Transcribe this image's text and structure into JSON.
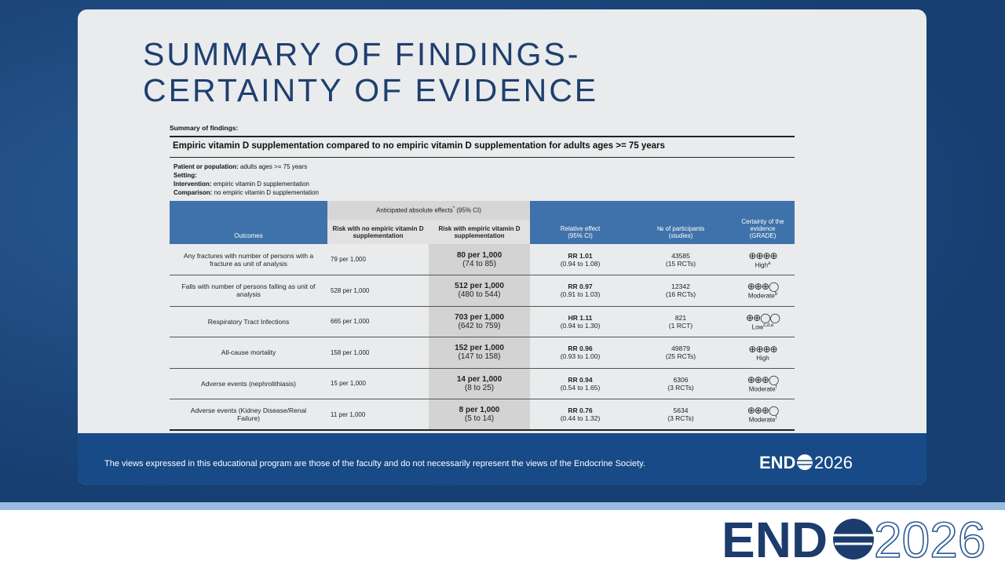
{
  "slide": {
    "title_lines": [
      "SUMMARY OF FINDINGS-",
      "CERTAINTY OF EVIDENCE"
    ],
    "footer": "The views expressed in this educational program are those of the faculty and do not necessarily represent the views of the Endocrine Society.",
    "footer_logo": {
      "bold": "END",
      "year": "2026"
    },
    "bottom_logo": {
      "bold": "END",
      "year": "2026"
    }
  },
  "table": {
    "caption": "Summary of findings:",
    "title": "Empiric vitamin D supplementation compared to no empiric vitamin D supplementation for adults ages >= 75 years",
    "context": [
      {
        "label": "Patient or population:",
        "value": "adults ages >= 75 years"
      },
      {
        "label": "Setting:"
      },
      {
        "label": "Intervention:",
        "value": "empiric vitamin D supplementation"
      },
      {
        "label": "Comparison:",
        "value": "no empiric vitamin D supplementation"
      }
    ],
    "header": {
      "outcomes": "Outcomes",
      "anticipated": "Anticipated absolute effects",
      "anticipated_mark": "*",
      "anticipated_ci": "(95% CI)",
      "risk_without": "Risk with no empiric vitamin D supplementation",
      "risk_with": "Risk with empiric vitamin D supplementation",
      "relative": "Relative effect (95% CI)",
      "participants": "№ of participants (studies)",
      "certainty": "Certainty of the evidence (GRADE)"
    },
    "rows": [
      {
        "outcome": "Any fractures with number of persons with a fracture as unit of analysis",
        "risk_without": "79 per 1,000",
        "risk_with": "80 per 1,000",
        "risk_with_ci": "(74 to 85)",
        "relative": "RR 1.01",
        "relative_ci": "(0.94 to 1.08)",
        "participants": "43585",
        "studies": "(15 RCTs)",
        "symbols": "⊕⊕⊕⊕",
        "certainty": "High",
        "note": "a"
      },
      {
        "outcome": "Falls with number of persons falling as unit of analysis",
        "risk_without": "528 per 1,000",
        "risk_with": "512 per 1,000",
        "risk_with_ci": "(480 to 544)",
        "relative": "RR 0.97",
        "relative_ci": "(0.91 to 1.03)",
        "participants": "12342",
        "studies": "(16 RCTs)",
        "symbols": "⊕⊕⊕◯",
        "certainty": "Moderate",
        "note": "b"
      },
      {
        "outcome": "Respiratory Tract Infections",
        "risk_without": "665 per 1,000",
        "risk_with": "703 per 1,000",
        "risk_with_ci": "(642 to 759)",
        "relative": "HR 1.11",
        "relative_ci": "(0.94 to 1.30)",
        "participants": "821",
        "studies": "(1 RCT)",
        "symbols": "⊕⊕◯◯",
        "certainty": "Low",
        "note": "c,d,e"
      },
      {
        "outcome": "All-cause mortality",
        "risk_without": "158 per 1,000",
        "risk_with": "152 per 1,000",
        "risk_with_ci": "(147 to 158)",
        "relative": "RR 0.96",
        "relative_ci": "(0.93 to 1.00)",
        "participants": "49879",
        "studies": "(25 RCTs)",
        "symbols": "⊕⊕⊕⊕",
        "certainty": "High"
      },
      {
        "outcome": "Adverse events (nephrolithiasis)",
        "risk_without": "15 per 1,000",
        "risk_with": "14 per 1,000",
        "risk_with_ci": "(8 to 25)",
        "relative": "RR 0.94",
        "relative_ci": "(0.54 to 1.65)",
        "participants": "6306",
        "studies": "(3 RCTs)",
        "symbols": "⊕⊕⊕◯",
        "certainty": "Moderate",
        "note": "f"
      },
      {
        "outcome": "Adverse events (Kidney Disease/Renal Failure)",
        "risk_without": "11 per 1,000",
        "risk_with": "8 per 1,000",
        "risk_with_ci": "(5 to 14)",
        "relative": "RR 0.76",
        "relative_ci": "(0.44 to 1.32)",
        "participants": "5634",
        "studies": "(3 RCTs)",
        "symbols": "⊕⊕⊕◯",
        "certainty": "Moderate",
        "note": "f"
      }
    ]
  }
}
